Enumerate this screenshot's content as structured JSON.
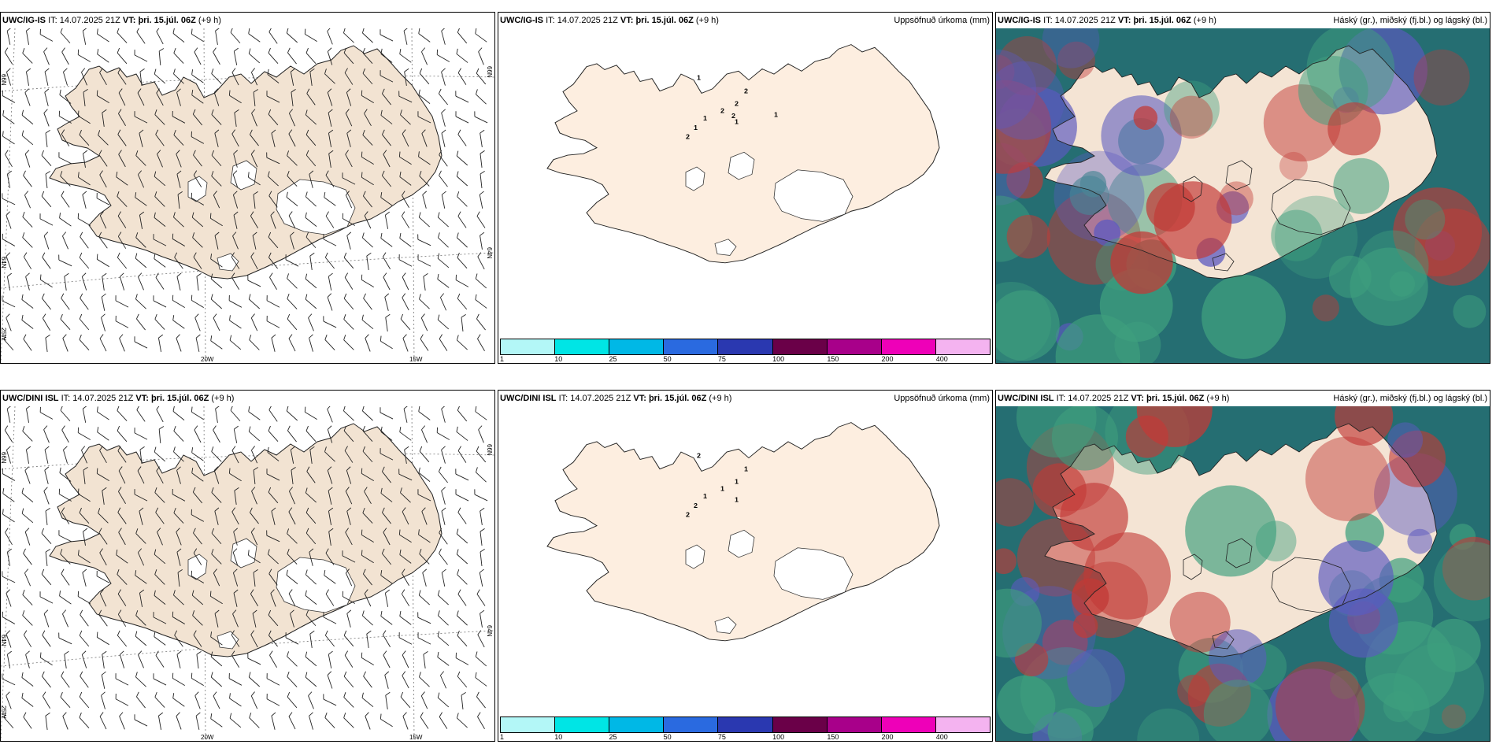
{
  "panels": [
    {
      "model": "UWC/IG-IS",
      "it_label": "IT:",
      "it_value": "14.07.2025 21Z",
      "vt_label": "VT:",
      "vt_value": "þri. 15.júl. 06Z",
      "offset": "(+9 h)",
      "title": "",
      "lat_labels": [
        "66N",
        "64N",
        "66N",
        "64N",
        "25W"
      ],
      "lon_labels": [
        "20W",
        "15W"
      ]
    },
    {
      "model": "UWC/IG-IS",
      "it_label": "IT:",
      "it_value": "14.07.2025 21Z",
      "vt_label": "VT:",
      "vt_value": "þri. 15.júl. 06Z",
      "offset": "(+9 h)",
      "title": "Uppsöfnuð úrkoma (mm)",
      "precip_labels": [
        "1",
        "1",
        "1",
        "2",
        "2",
        "2",
        "2",
        "1",
        "2",
        "1"
      ]
    },
    {
      "model": "UWC/IG-IS",
      "it_label": "IT:",
      "it_value": "14.07.2025 21Z",
      "vt_label": "VT:",
      "vt_value": "þri. 15.júl. 06Z",
      "offset": "(+9 h)",
      "title": "Háský (gr.), miðský (fj.bl.) og lágský (bl.)"
    },
    {
      "model": "UWC/DINI ISL",
      "it_label": "IT:",
      "it_value": "14.07.2025 21Z",
      "vt_label": "VT:",
      "vt_value": "þri. 15.júl. 06Z",
      "offset": "(+9 h)",
      "title": "",
      "lat_labels": [
        "66N",
        "64N",
        "66N",
        "64N",
        "25W"
      ],
      "lon_labels": [
        "20W",
        "15W"
      ]
    },
    {
      "model": "UWC/DINI ISL",
      "it_label": "IT:",
      "it_value": "14.07.2025 21Z",
      "vt_label": "VT:",
      "vt_value": "þri. 15.júl. 06Z",
      "offset": "(+9 h)",
      "title": "Uppsöfnuð úrkoma (mm)",
      "precip_labels": [
        "2",
        "1",
        "2",
        "2",
        "1",
        "1",
        "1",
        "1"
      ]
    },
    {
      "model": "UWC/DINI ISL",
      "it_label": "IT:",
      "it_value": "14.07.2025 21Z",
      "vt_label": "VT:",
      "vt_value": "þri. 15.júl. 06Z",
      "offset": "(+9 h)",
      "title": "Háský (gr.), miðský (fj.bl.) og lágský (bl.)"
    }
  ],
  "legend": {
    "labels": [
      "1",
      "10",
      "25",
      "50",
      "75",
      "100",
      "150",
      "200",
      "400"
    ],
    "colors": [
      "#b3f7f7",
      "#00e5e5",
      "#00b8e6",
      "#2a6ae0",
      "#2a38b0",
      "#6a0048",
      "#a8008a",
      "#ee00b8",
      "#f4b3f0"
    ]
  },
  "colors": {
    "land_wind": "#f2e3d2",
    "land_precip": "#fdeee0",
    "cloud_high": "#3fa07e",
    "cloud_mid": "#5c5ac0",
    "cloud_low": "#c23a36",
    "sea_dark": "#1c5c70"
  },
  "icons": {
    "wind_barb": "wind-barb-icon"
  }
}
